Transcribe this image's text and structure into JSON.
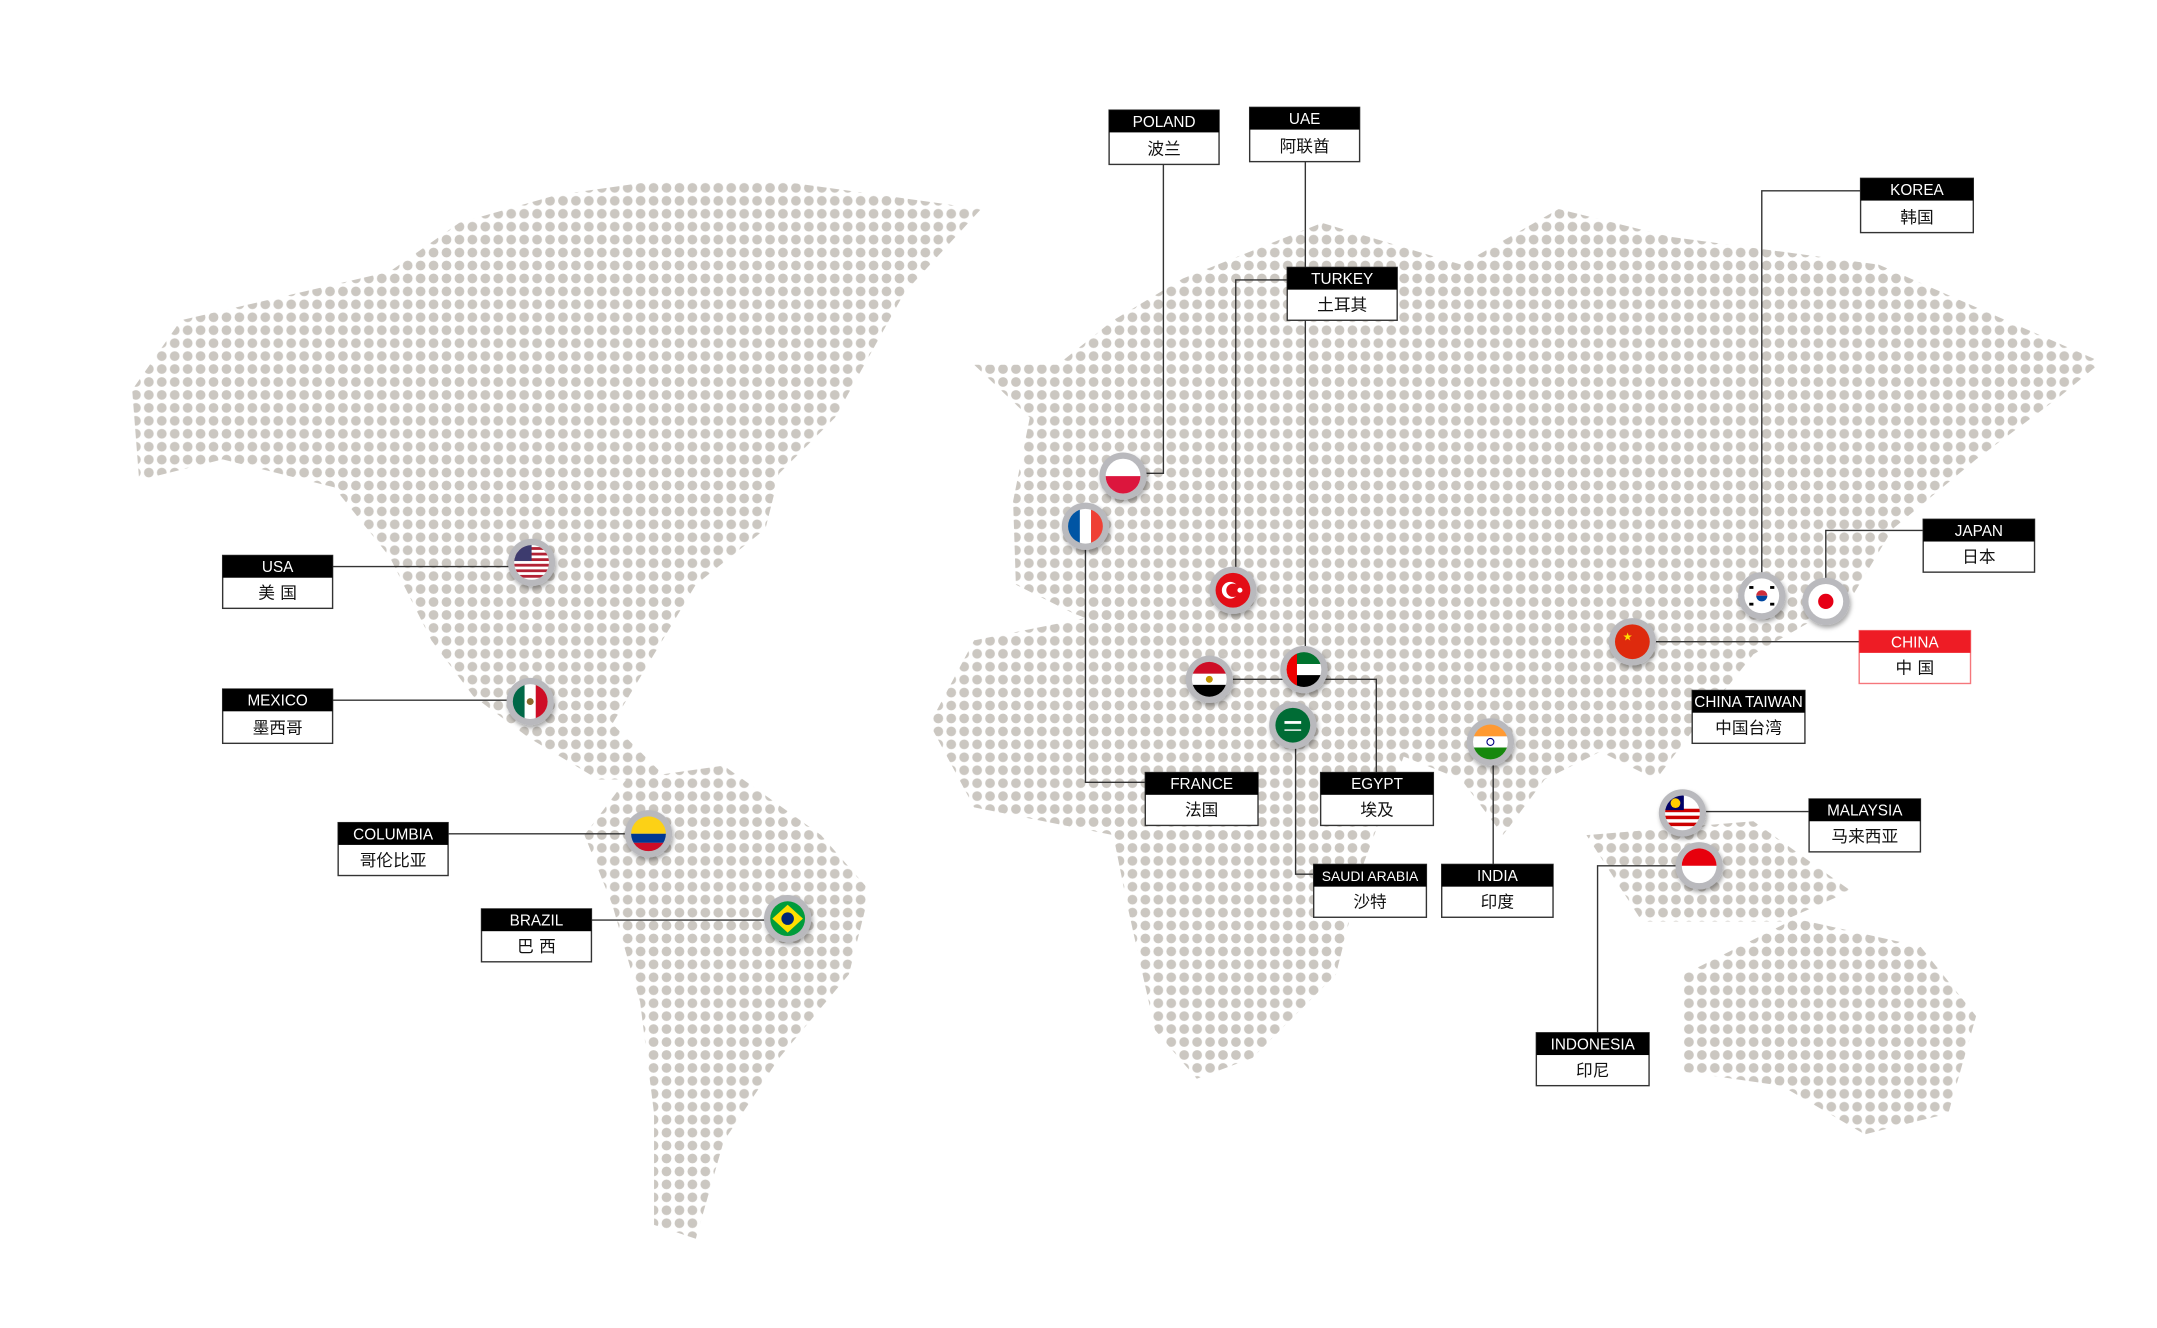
{
  "map": {
    "dot_color": "#cbc7c1",
    "label_color": "#000000",
    "highlight_color": "#ee1c25",
    "locations": [
      {
        "id": "poland",
        "en": "POLAND",
        "zh": "波兰",
        "flag": "poland-flag-icon"
      },
      {
        "id": "uae",
        "en": "UAE",
        "zh": "阿联酋",
        "flag": "uae-flag-icon"
      },
      {
        "id": "turkey",
        "en": "TURKEY",
        "zh": "土耳其",
        "flag": "turkey-flag-icon"
      },
      {
        "id": "korea",
        "en": "KOREA",
        "zh": "韩国",
        "flag": "korea-flag-icon"
      },
      {
        "id": "japan",
        "en": "JAPAN",
        "zh": "日本",
        "flag": "japan-flag-icon"
      },
      {
        "id": "china",
        "en": "CHINA",
        "zh": "中 国",
        "flag": "china-flag-icon",
        "highlight": true
      },
      {
        "id": "taiwan",
        "en": "CHINA TAIWAN",
        "zh": "中国台湾"
      },
      {
        "id": "malaysia",
        "en": "MALAYSIA",
        "zh": "马来西亚",
        "flag": "malaysia-flag-icon"
      },
      {
        "id": "indonesia",
        "en": "INDONESIA",
        "zh": "印尼",
        "flag": "indonesia-flag-icon"
      },
      {
        "id": "india",
        "en": "INDIA",
        "zh": "印度",
        "flag": "india-flag-icon"
      },
      {
        "id": "saudi",
        "en": "SAUDI ARABIA",
        "zh": "沙特",
        "flag": "saudi-flag-icon"
      },
      {
        "id": "egypt",
        "en": "EGYPT",
        "zh": "埃及",
        "flag": "egypt-flag-icon"
      },
      {
        "id": "france",
        "en": "FRANCE",
        "zh": "法国",
        "flag": "france-flag-icon"
      },
      {
        "id": "usa",
        "en": "USA",
        "zh": "美 国",
        "flag": "usa-flag-icon"
      },
      {
        "id": "mexico",
        "en": "MEXICO",
        "zh": "墨西哥",
        "flag": "mexico-flag-icon"
      },
      {
        "id": "columbia",
        "en": "COLUMBIA",
        "zh": "哥伦比亚",
        "flag": "colombia-flag-icon"
      },
      {
        "id": "brazil",
        "en": "BRAZIL",
        "zh": "巴 西",
        "flag": "brazil-flag-icon"
      }
    ]
  }
}
